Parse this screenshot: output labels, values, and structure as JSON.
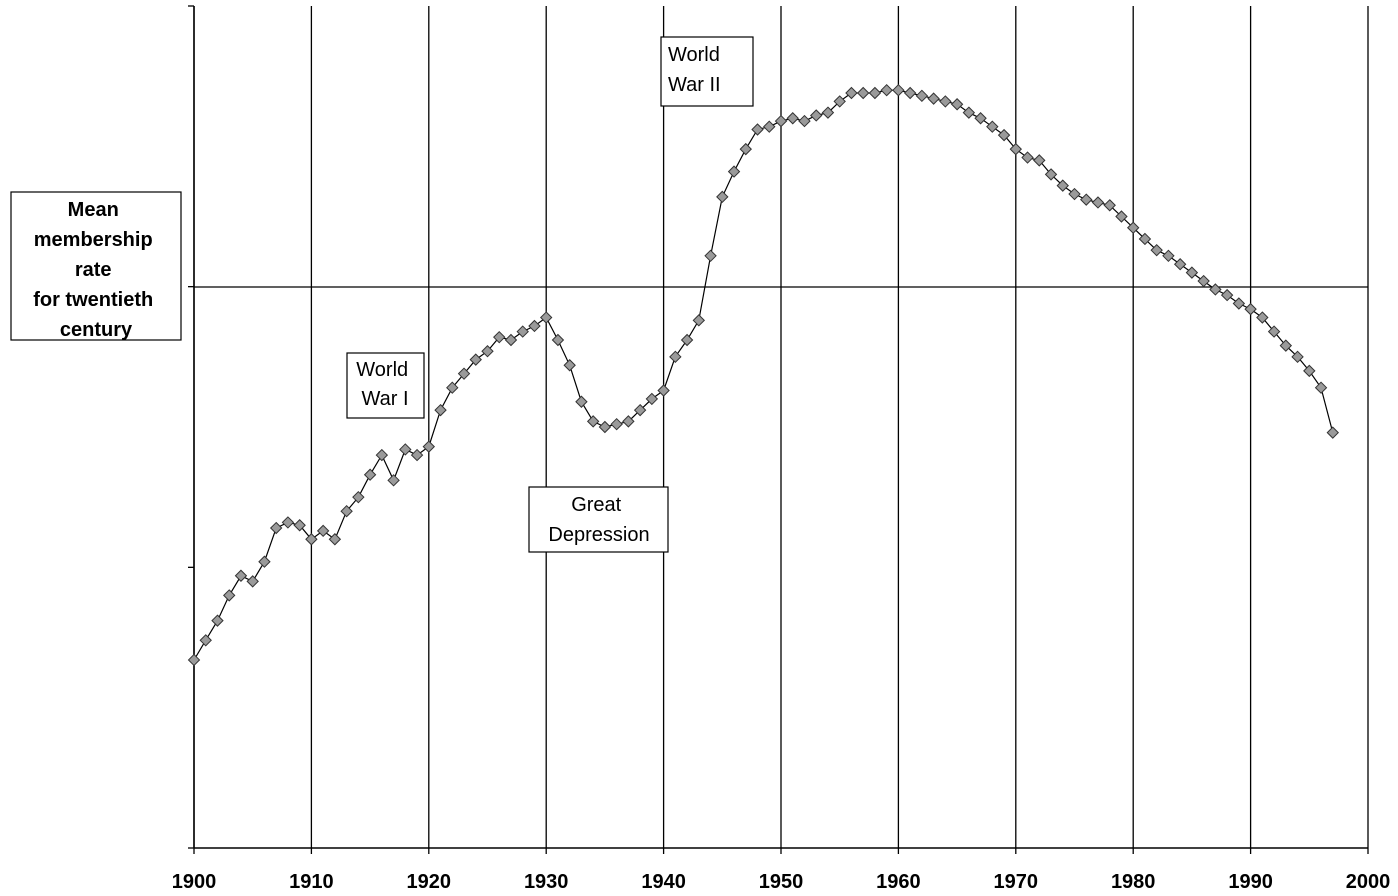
{
  "chart_data": {
    "type": "line",
    "title": "",
    "xlabel": "",
    "ylabel": "",
    "xlim": [
      1900,
      2000
    ],
    "x_ticks": [
      "1900",
      "1910",
      "1920",
      "1930",
      "1940",
      "1950",
      "1960",
      "1970",
      "1980",
      "1990",
      "2000"
    ],
    "y_ticks_shown": false,
    "grid": true,
    "marker": "diamond",
    "reference_line": {
      "label": "Mean membership rate for twentieth century",
      "label_lines": [
        "Mean",
        "membership",
        "rate",
        "for twentieth",
        "century"
      ]
    },
    "annotations": [
      {
        "id": "ww1",
        "lines": [
          "World",
          "War I"
        ]
      },
      {
        "id": "depression",
        "lines": [
          "Great",
          "Depression"
        ]
      },
      {
        "id": "ww2",
        "lines": [
          "World",
          "War II"
        ]
      }
    ],
    "series": [
      {
        "x": [
          1900,
          1901,
          1902,
          1903,
          1904,
          1905,
          1906,
          1907,
          1908,
          1909,
          1910,
          1911,
          1912,
          1913,
          1914,
          1915,
          1916,
          1917,
          1918,
          1919,
          1920,
          1921,
          1922,
          1923,
          1924,
          1925,
          1926,
          1927,
          1928,
          1929,
          1930,
          1931,
          1932,
          1933,
          1934,
          1935,
          1936,
          1937,
          1938,
          1939,
          1940,
          1941,
          1942,
          1943,
          1944,
          1945,
          1946,
          1947,
          1948,
          1949,
          1950,
          1951,
          1952,
          1953,
          1954,
          1955,
          1956,
          1957,
          1958,
          1959,
          1960,
          1961,
          1962,
          1963,
          1964,
          1965,
          1966,
          1967,
          1968,
          1969,
          1970,
          1971,
          1972,
          1973,
          1974,
          1975,
          1976,
          1977,
          1978,
          1979,
          1980,
          1981,
          1982,
          1983,
          1984,
          1985,
          1986,
          1987,
          1988,
          1989,
          1990,
          1991,
          1992,
          1993,
          1994,
          1995,
          1996,
          1997
        ],
        "y": [
          0.67,
          0.74,
          0.81,
          0.9,
          0.97,
          0.95,
          1.02,
          1.14,
          1.16,
          1.15,
          1.1,
          1.13,
          1.1,
          1.2,
          1.25,
          1.33,
          1.4,
          1.31,
          1.42,
          1.4,
          1.43,
          1.56,
          1.64,
          1.69,
          1.74,
          1.77,
          1.82,
          1.81,
          1.84,
          1.86,
          1.89,
          1.81,
          1.72,
          1.59,
          1.52,
          1.5,
          1.51,
          1.52,
          1.56,
          1.6,
          1.63,
          1.75,
          1.81,
          1.88,
          2.11,
          2.32,
          2.41,
          2.49,
          2.56,
          2.57,
          2.59,
          2.6,
          2.59,
          2.61,
          2.62,
          2.66,
          2.69,
          2.69,
          2.69,
          2.7,
          2.7,
          2.69,
          2.68,
          2.67,
          2.66,
          2.65,
          2.62,
          2.6,
          2.57,
          2.54,
          2.49,
          2.46,
          2.45,
          2.4,
          2.36,
          2.33,
          2.31,
          2.3,
          2.29,
          2.25,
          2.21,
          2.17,
          2.13,
          2.11,
          2.08,
          2.05,
          2.02,
          1.99,
          1.97,
          1.94,
          1.92,
          1.89,
          1.84,
          1.79,
          1.75,
          1.7,
          1.64,
          1.48
        ]
      }
    ]
  }
}
